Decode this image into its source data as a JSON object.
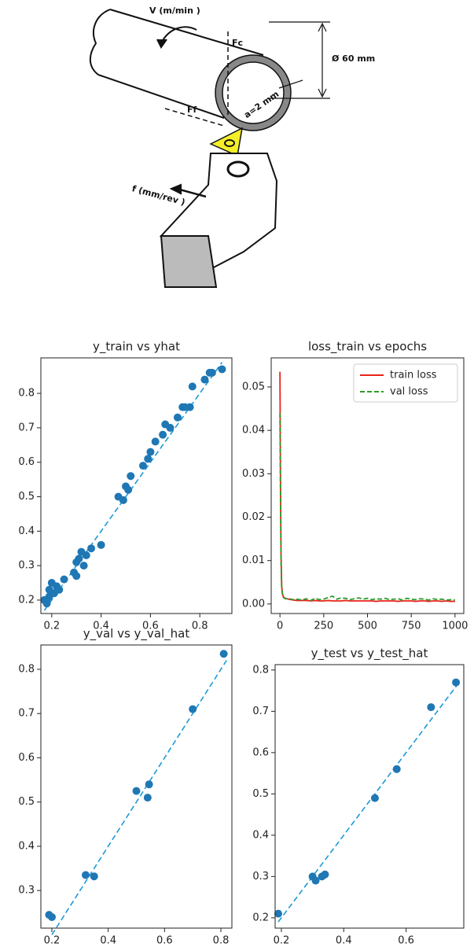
{
  "diagram": {
    "labels": {
      "speed": "V (m/min )",
      "cutting_force": "Fc",
      "diameter": "Ø 60 mm",
      "feed_force": "Ff",
      "depth": "a=2 mm",
      "feed": "f (mm/rev )"
    }
  },
  "chart_data": [
    {
      "type": "scatter",
      "title": "y_train vs yhat",
      "color": "#1f77b4",
      "line_color": "#1b9ad6",
      "x": [
        0.18,
        0.18,
        0.19,
        0.17,
        0.19,
        0.2,
        0.21,
        0.22,
        0.23,
        0.25,
        0.29,
        0.3,
        0.3,
        0.31,
        0.32,
        0.33,
        0.34,
        0.36,
        0.4,
        0.47,
        0.49,
        0.5,
        0.51,
        0.52,
        0.57,
        0.59,
        0.6,
        0.62,
        0.65,
        0.66,
        0.68,
        0.71,
        0.73,
        0.74,
        0.76,
        0.77,
        0.82,
        0.84,
        0.85,
        0.89
      ],
      "values": [
        0.19,
        0.2,
        0.21,
        0.2,
        0.23,
        0.25,
        0.22,
        0.24,
        0.23,
        0.26,
        0.28,
        0.27,
        0.31,
        0.32,
        0.34,
        0.3,
        0.33,
        0.35,
        0.36,
        0.5,
        0.49,
        0.53,
        0.52,
        0.56,
        0.59,
        0.61,
        0.63,
        0.66,
        0.68,
        0.71,
        0.7,
        0.73,
        0.76,
        0.76,
        0.76,
        0.82,
        0.84,
        0.86,
        0.86,
        0.87
      ],
      "reference_line": {
        "x": [
          0.17,
          0.89
        ],
        "y": [
          0.17,
          0.89
        ]
      },
      "xlim": [
        0.156,
        0.93
      ],
      "ylim": [
        0.161,
        0.903
      ],
      "xticks": [
        0.2,
        0.4,
        0.6,
        0.8
      ],
      "yticks": [
        0.2,
        0.3,
        0.4,
        0.5,
        0.6,
        0.7,
        0.8
      ]
    },
    {
      "type": "line",
      "title": "loss_train vs epochs",
      "legend": "upper right",
      "x": [
        0,
        3,
        6,
        10,
        15,
        20,
        30,
        50,
        75,
        100,
        125,
        150,
        175,
        200,
        225,
        250,
        275,
        300,
        325,
        350,
        375,
        400,
        425,
        450,
        475,
        500,
        525,
        550,
        575,
        600,
        625,
        650,
        675,
        700,
        725,
        750,
        775,
        800,
        825,
        850,
        875,
        900,
        925,
        950,
        975,
        1000
      ],
      "series": [
        {
          "name": "train loss",
          "color": "#e8231c",
          "style": "solid",
          "values": [
            0.0535,
            0.03,
            0.012,
            0.004,
            0.0022,
            0.0016,
            0.0013,
            0.0011,
            0.0009,
            0.0008,
            0.0008,
            0.0008,
            0.0007,
            0.0008,
            0.0007,
            0.0007,
            0.0008,
            0.0007,
            0.0007,
            0.0007,
            0.0008,
            0.0007,
            0.0007,
            0.0007,
            0.0007,
            0.0007,
            0.0007,
            0.0006,
            0.0007,
            0.0007,
            0.0007,
            0.0007,
            0.0006,
            0.0007,
            0.0007,
            0.0007,
            0.0006,
            0.0007,
            0.0007,
            0.0006,
            0.0007,
            0.0007,
            0.0006,
            0.0007,
            0.0006,
            0.0006
          ]
        },
        {
          "name": "val loss",
          "color": "#2a9d2a",
          "style": "dashed",
          "values": [
            0.044,
            0.025,
            0.01,
            0.0035,
            0.002,
            0.0015,
            0.0012,
            0.0012,
            0.001,
            0.0011,
            0.0009,
            0.0012,
            0.0008,
            0.0013,
            0.001,
            0.0011,
            0.0015,
            0.0018,
            0.0011,
            0.0014,
            0.0013,
            0.001,
            0.0012,
            0.0014,
            0.0011,
            0.0013,
            0.001,
            0.0012,
            0.0011,
            0.0013,
            0.001,
            0.0011,
            0.0012,
            0.0009,
            0.0013,
            0.0011,
            0.001,
            0.0012,
            0.0011,
            0.0009,
            0.0012,
            0.001,
            0.0011,
            0.0009,
            0.001,
            0.0009
          ]
        }
      ],
      "xlim": [
        -50,
        1050
      ],
      "ylim": [
        -0.0022,
        0.0567
      ],
      "xticks": [
        0,
        250,
        500,
        750,
        1000
      ],
      "yticks": [
        {
          "value": 0,
          "label": "0.00"
        },
        0.01,
        0.02,
        0.03,
        0.04,
        0.05
      ]
    },
    {
      "type": "scatter",
      "title": "y_val vs y_val_hat",
      "color": "#1f77b4",
      "line_color": "#1b9ad6",
      "x": [
        0.19,
        0.2,
        0.32,
        0.35,
        0.5,
        0.54,
        0.545,
        0.7,
        0.81
      ],
      "values": [
        0.245,
        0.24,
        0.335,
        0.332,
        0.525,
        0.51,
        0.54,
        0.71,
        0.835
      ],
      "reference_line": {
        "x": [
          0.2,
          0.82
        ],
        "y": [
          0.2,
          0.82
        ]
      },
      "xlim": [
        0.161,
        0.839
      ],
      "ylim": [
        0.215,
        0.855
      ],
      "xticks": [
        0.2,
        0.4,
        0.6,
        0.8
      ],
      "yticks": [
        0.3,
        0.4,
        0.5,
        0.6,
        0.7,
        0.8
      ]
    },
    {
      "type": "scatter",
      "title": "y_test vs y_test_hat",
      "color": "#1f77b4",
      "line_color": "#1b9ad6",
      "x": [
        0.19,
        0.3,
        0.31,
        0.33,
        0.34,
        0.5,
        0.57,
        0.68,
        0.76
      ],
      "values": [
        0.21,
        0.3,
        0.29,
        0.3,
        0.305,
        0.49,
        0.56,
        0.71,
        0.77
      ],
      "reference_line": {
        "x": [
          0.19,
          0.77
        ],
        "y": [
          0.19,
          0.77
        ]
      },
      "xlim": [
        0.18,
        0.785
      ],
      "ylim": [
        0.175,
        0.813
      ],
      "xticks": [
        0.2,
        0.4,
        0.6
      ],
      "yticks": [
        0.2,
        0.3,
        0.4,
        0.5,
        0.6,
        0.7,
        0.8
      ]
    }
  ]
}
